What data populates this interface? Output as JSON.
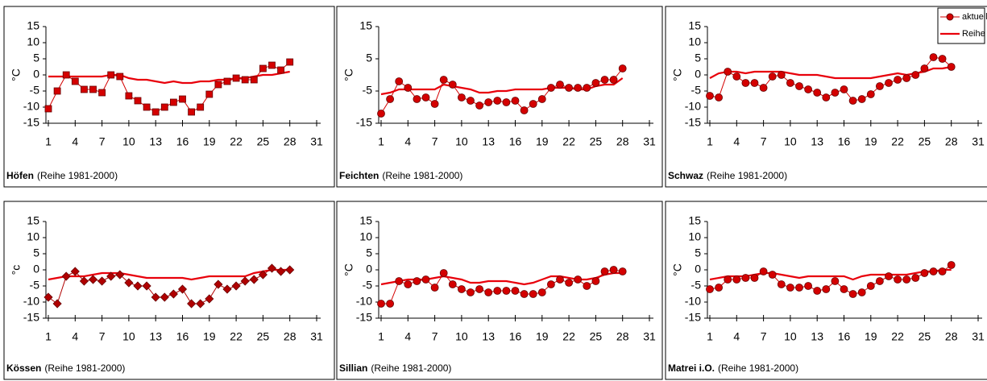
{
  "chart_data": [
    {
      "type": "line",
      "name": "Höfen",
      "subtitle": "(Reihe 1981-2000)",
      "ylabel": "°C",
      "marker": "square",
      "x": [
        1,
        2,
        3,
        4,
        5,
        6,
        7,
        8,
        9,
        10,
        11,
        12,
        13,
        14,
        15,
        16,
        17,
        18,
        19,
        20,
        21,
        22,
        23,
        24,
        25,
        26,
        27,
        28
      ],
      "xlim": [
        1,
        31
      ],
      "xticks": [
        1,
        4,
        7,
        10,
        13,
        16,
        19,
        22,
        25,
        28,
        31
      ],
      "ylim": [
        -15,
        15
      ],
      "yticks": [
        -15,
        -10,
        -5,
        0,
        5,
        10,
        15
      ],
      "series": [
        {
          "color": "#d40000",
          "values": [
            -10.5,
            -5,
            0,
            -2,
            -4.5,
            -4.5,
            -5.5,
            0,
            -0.5,
            -6.5,
            -8,
            -10,
            -11.5,
            -10,
            -8.5,
            -7.5,
            -11.5,
            -10,
            -6,
            -3,
            -2,
            -1,
            -1.5,
            -1.5,
            2,
            3,
            1.5,
            4
          ]
        },
        {
          "color": "#e8000b",
          "values": [
            -0.5,
            -0.5,
            -0.5,
            -0.5,
            -0.5,
            -0.5,
            -0.5,
            0,
            0,
            -1,
            -1.5,
            -1.5,
            -2,
            -2.5,
            -2,
            -2.5,
            -2.5,
            -2,
            -2,
            -1.5,
            -1.5,
            -1,
            -1,
            -0.5,
            0,
            0,
            0.5,
            1
          ]
        }
      ]
    },
    {
      "type": "line",
      "name": "Feichten",
      "subtitle": "(Reihe 1981-2000)",
      "ylabel": "°C",
      "marker": "circle",
      "x": [
        1,
        2,
        3,
        4,
        5,
        6,
        7,
        8,
        9,
        10,
        11,
        12,
        13,
        14,
        15,
        16,
        17,
        18,
        19,
        20,
        21,
        22,
        23,
        24,
        25,
        26,
        27,
        28
      ],
      "xlim": [
        1,
        31
      ],
      "xticks": [
        1,
        4,
        7,
        10,
        13,
        16,
        19,
        22,
        25,
        28,
        31
      ],
      "ylim": [
        -15,
        15
      ],
      "yticks": [
        -15,
        -5,
        5,
        15
      ],
      "series": [
        {
          "color": "#d40000",
          "values": [
            -12,
            -7.5,
            -2,
            -4,
            -7.5,
            -7,
            -9,
            -1.5,
            -3,
            -7,
            -8,
            -9.5,
            -8.5,
            -8,
            -8.5,
            -8,
            -11,
            -9,
            -7.5,
            -4,
            -3,
            -4,
            -4,
            -4,
            -2.5,
            -1.5,
            -1.5,
            2
          ]
        },
        {
          "color": "#e8000b",
          "values": [
            -6,
            -5.5,
            -4.5,
            -4.5,
            -4.5,
            -4.5,
            -4.5,
            -3,
            -3.5,
            -4,
            -4.5,
            -5.5,
            -5.5,
            -5,
            -5,
            -4.5,
            -4.5,
            -4.5,
            -4.5,
            -4,
            -4,
            -4,
            -4.5,
            -4.5,
            -3.5,
            -3,
            -3,
            -1
          ]
        }
      ]
    },
    {
      "type": "line",
      "name": "Schwaz",
      "subtitle": "(Reihe 1981-2000)",
      "ylabel": "°C",
      "marker": "circle",
      "legend": "upper right",
      "x": [
        1,
        2,
        3,
        4,
        5,
        6,
        7,
        8,
        9,
        10,
        11,
        12,
        13,
        14,
        15,
        16,
        17,
        18,
        19,
        20,
        21,
        22,
        23,
        24,
        25,
        26,
        27,
        28
      ],
      "xlim": [
        1,
        31
      ],
      "xticks": [
        1,
        4,
        7,
        10,
        13,
        16,
        19,
        22,
        25,
        28,
        31
      ],
      "ylim": [
        -15,
        15
      ],
      "yticks": [
        -15,
        -10,
        -5,
        0,
        5,
        10,
        15
      ],
      "series": [
        {
          "name": "aktuell",
          "color": "#d40000",
          "values": [
            -6.5,
            -7,
            1,
            -0.5,
            -2.5,
            -2.5,
            -4,
            -0.5,
            0,
            -2.5,
            -3.5,
            -4.5,
            -5.5,
            -7,
            -5.5,
            -4.5,
            -8,
            -7.5,
            -6,
            -3.5,
            -2.5,
            -1.5,
            -1,
            0,
            2,
            5.5,
            5,
            2.5
          ]
        },
        {
          "name": "Reihe",
          "color": "#e8000b",
          "values": [
            -1,
            0.5,
            1,
            1,
            0.5,
            1,
            1,
            1,
            1,
            0.5,
            0,
            0,
            0,
            -0.5,
            -1,
            -1,
            -1,
            -1,
            -1,
            -0.5,
            0,
            0.5,
            0,
            0.5,
            1,
            2,
            2,
            2.5
          ]
        }
      ]
    },
    {
      "type": "line",
      "name": "Kössen",
      "subtitle": "(Reihe 1981-2000)",
      "ylabel": "°c",
      "marker": "diamond",
      "x": [
        1,
        2,
        3,
        4,
        5,
        6,
        7,
        8,
        9,
        10,
        11,
        12,
        13,
        14,
        15,
        16,
        17,
        18,
        19,
        20,
        21,
        22,
        23,
        24,
        25,
        26,
        27,
        28
      ],
      "xlim": [
        1,
        31
      ],
      "xticks": [
        1,
        4,
        7,
        10,
        13,
        16,
        19,
        22,
        25,
        28,
        31
      ],
      "ylim": [
        -15,
        15
      ],
      "yticks": [
        -15,
        -10,
        -5,
        0,
        5,
        10,
        15
      ],
      "series": [
        {
          "color": "#b00000",
          "values": [
            -8.5,
            -10.5,
            -2,
            -0.5,
            -3.5,
            -3,
            -3.5,
            -2,
            -1.5,
            -4,
            -5,
            -5,
            -8.5,
            -8.5,
            -7.5,
            -6,
            -10.5,
            -10.5,
            -9,
            -4.5,
            -6,
            -5,
            -3.5,
            -3,
            -1.5,
            0.5,
            -0.5,
            0
          ]
        },
        {
          "color": "#e8000b",
          "values": [
            -3,
            -2.5,
            -2,
            -2,
            -2,
            -1.5,
            -1,
            -1,
            -1,
            -1.5,
            -2,
            -2.5,
            -2.5,
            -2.5,
            -2.5,
            -2.5,
            -3,
            -2.5,
            -2,
            -2,
            -2,
            -2,
            -2,
            -1,
            -0.5,
            0,
            0,
            0
          ]
        }
      ]
    },
    {
      "type": "line",
      "name": "Sillian",
      "subtitle": "(Reihe 1981-2000)",
      "ylabel": "°C",
      "marker": "circle",
      "x": [
        1,
        2,
        3,
        4,
        5,
        6,
        7,
        8,
        9,
        10,
        11,
        12,
        13,
        14,
        15,
        16,
        17,
        18,
        19,
        20,
        21,
        22,
        23,
        24,
        25,
        26,
        27,
        28
      ],
      "xlim": [
        1,
        31
      ],
      "xticks": [
        1,
        4,
        7,
        10,
        13,
        16,
        19,
        22,
        25,
        28,
        31
      ],
      "ylim": [
        -15,
        15
      ],
      "yticks": [
        -15,
        -10,
        -5,
        0,
        5,
        10,
        15
      ],
      "series": [
        {
          "color": "#d40000",
          "values": [
            -10.5,
            -10.5,
            -3.5,
            -4.5,
            -3.5,
            -3,
            -5.5,
            -1,
            -4.5,
            -6,
            -7,
            -6,
            -7,
            -6.5,
            -6.5,
            -6.5,
            -7.5,
            -7.5,
            -7,
            -4.5,
            -3,
            -4,
            -3,
            -5,
            -3.5,
            -0.5,
            0,
            -0.5
          ]
        },
        {
          "color": "#e8000b",
          "values": [
            -4.5,
            -4,
            -3.5,
            -3,
            -3,
            -3,
            -2.5,
            -2,
            -2.5,
            -3,
            -4,
            -4,
            -3.5,
            -3.5,
            -3.5,
            -4,
            -4.5,
            -4,
            -3,
            -2,
            -2,
            -2.5,
            -3,
            -3,
            -2.5,
            -1.5,
            -1,
            -1
          ]
        }
      ]
    },
    {
      "type": "line",
      "name": "Matrei i.O.",
      "subtitle": "(Reihe 1981-2000)",
      "ylabel": "°C",
      "marker": "circle",
      "x": [
        1,
        2,
        3,
        4,
        5,
        6,
        7,
        8,
        9,
        10,
        11,
        12,
        13,
        14,
        15,
        16,
        17,
        18,
        19,
        20,
        21,
        22,
        23,
        24,
        25,
        26,
        27,
        28
      ],
      "xlim": [
        1,
        31
      ],
      "xticks": [
        1,
        4,
        7,
        10,
        13,
        16,
        19,
        22,
        25,
        28,
        31
      ],
      "ylim": [
        -15,
        15
      ],
      "yticks": [
        -15,
        -10,
        -5,
        0,
        5,
        10,
        15
      ],
      "series": [
        {
          "color": "#d40000",
          "values": [
            -6,
            -5.5,
            -3,
            -3,
            -2.5,
            -2.5,
            -0.5,
            -1.5,
            -4.5,
            -5.5,
            -5.5,
            -5,
            -6.5,
            -6,
            -3.5,
            -6,
            -7.5,
            -7,
            -5,
            -3.5,
            -2,
            -3,
            -3,
            -2.5,
            -1,
            -0.5,
            -0.5,
            1.5
          ]
        },
        {
          "color": "#e8000b",
          "values": [
            -3,
            -2.5,
            -2,
            -2,
            -2,
            -1.5,
            -1,
            -1,
            -1.5,
            -2,
            -2.5,
            -2,
            -2,
            -2,
            -2,
            -2,
            -3,
            -2,
            -1.5,
            -1.5,
            -1.5,
            -1.5,
            -1.5,
            -1,
            -0.5,
            -0.5,
            0,
            0
          ]
        }
      ]
    }
  ]
}
